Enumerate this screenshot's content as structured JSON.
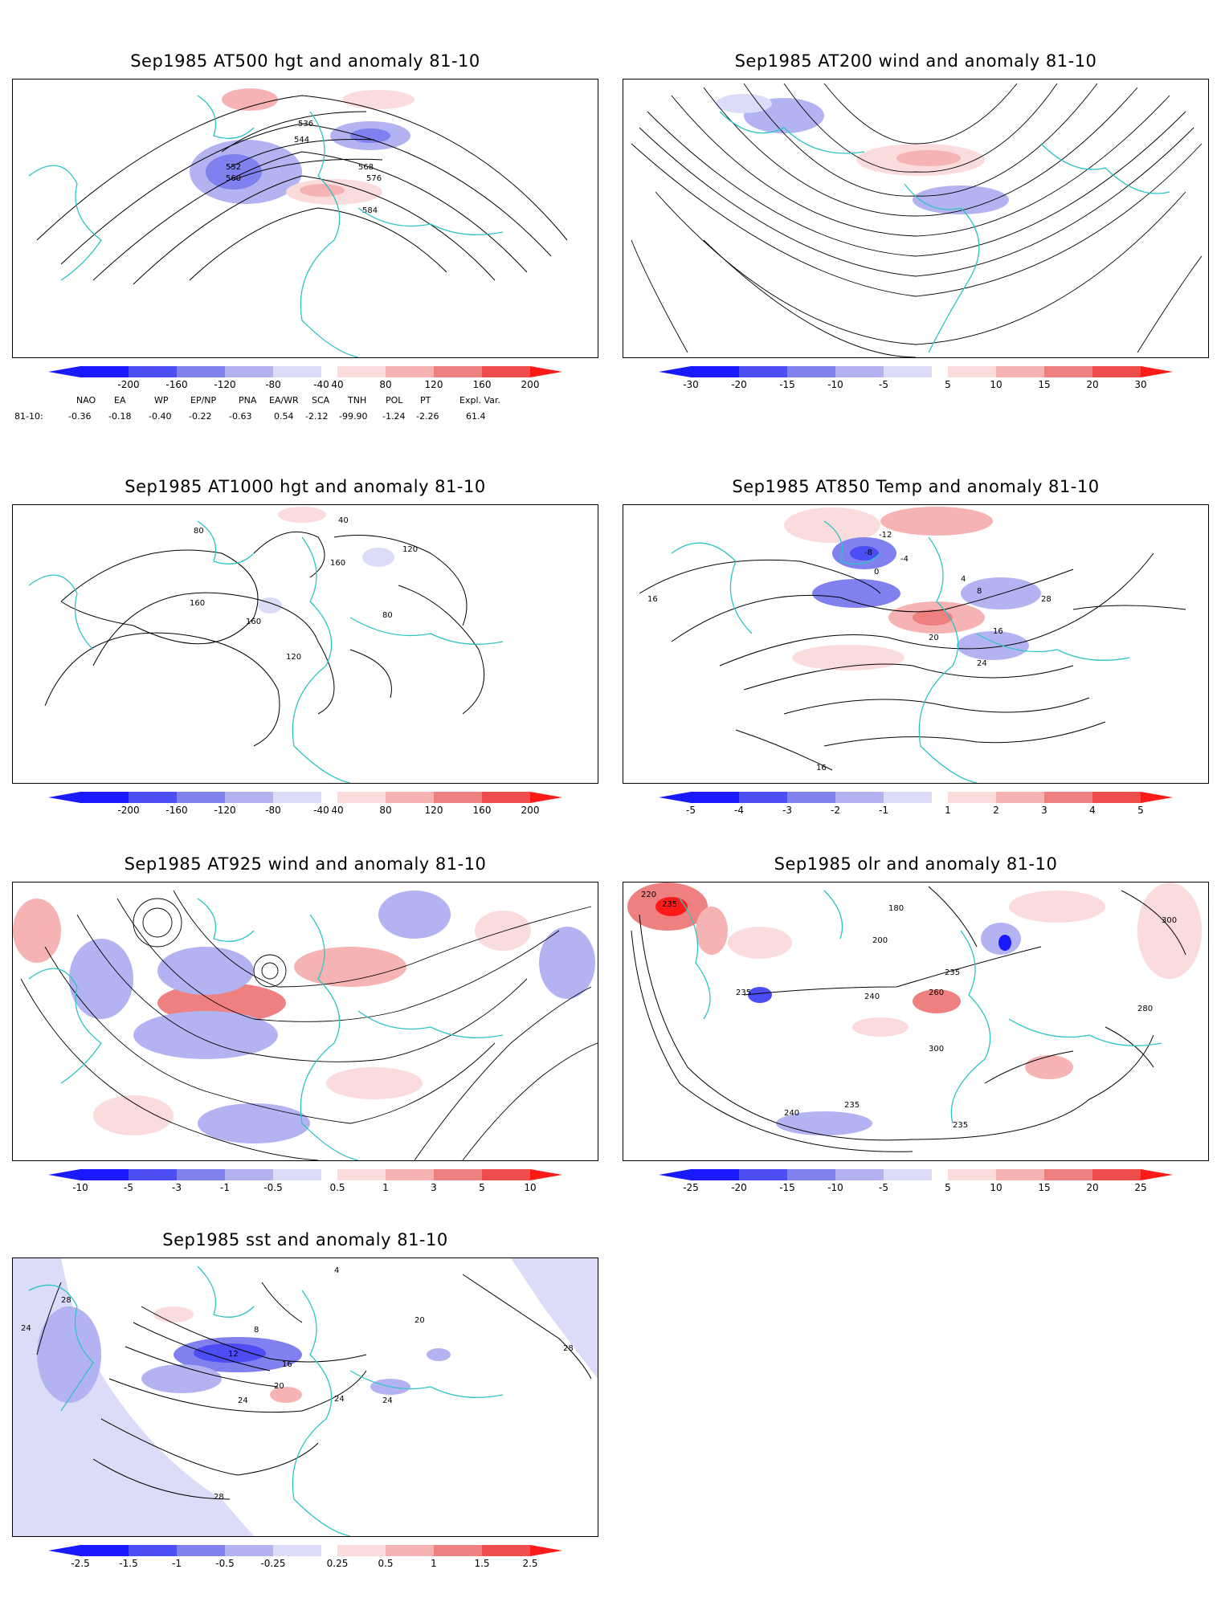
{
  "colors": {
    "coast": "#2ec4c4",
    "contour": "#000000",
    "blues": [
      "#1a1aff",
      "#4d4df5",
      "#8080ee",
      "#b3b3f2",
      "#dcdcf8"
    ],
    "reds": [
      "#fadcdc",
      "#f5b3b3",
      "#ef8080",
      "#f04d4d",
      "#ff1a1a"
    ]
  },
  "panels": [
    {
      "id": "p500",
      "title": "Sep1985 AT500 hgt and anomaly 81-10",
      "ticks": [
        "-200",
        "-160",
        "-120",
        "-80",
        "-40",
        "40",
        "80",
        "120",
        "160",
        "200"
      ],
      "contour_labels": [
        "536",
        "544",
        "552",
        "560",
        "568",
        "576",
        "584"
      ],
      "indices": {
        "row_label": "81-10:",
        "headers": [
          "NAO",
          "EA",
          "WP",
          "EP/NP",
          "PNA",
          "EA/WR",
          "SCA",
          "TNH",
          "POL",
          "PT",
          "Expl. Var."
        ],
        "values": [
          "-0.36",
          "-0.18",
          "-0.40",
          "-0.22",
          "-0.63",
          "0.54",
          "-2.12",
          "-99.90",
          "-1.24",
          "-2.26",
          "61.4"
        ]
      }
    },
    {
      "id": "p200",
      "title": "Sep1985 AT200 wind and anomaly 81-10",
      "ticks": [
        "-30",
        "-20",
        "-15",
        "-10",
        "-5",
        "5",
        "10",
        "15",
        "20",
        "30"
      ],
      "contour_labels": []
    },
    {
      "id": "p1000",
      "title": "Sep1985 AT1000 hgt and anomaly 81-10",
      "ticks": [
        "-200",
        "-160",
        "-120",
        "-80",
        "-40",
        "40",
        "80",
        "120",
        "160",
        "200"
      ],
      "contour_labels": [
        "40",
        "80",
        "120",
        "160"
      ]
    },
    {
      "id": "p850",
      "title": "Sep1985 AT850 Temp and anomaly 81-10",
      "ticks": [
        "-5",
        "-4",
        "-3",
        "-2",
        "-1",
        "1",
        "2",
        "3",
        "4",
        "5"
      ],
      "contour_labels": [
        "-12",
        "-8",
        "-4",
        "0",
        "4",
        "8",
        "16",
        "20",
        "24",
        "28"
      ]
    },
    {
      "id": "p925",
      "title": "Sep1985 AT925 wind and anomaly 81-10",
      "ticks": [
        "-10",
        "-5",
        "-3",
        "-1",
        "-0.5",
        "0.5",
        "1",
        "3",
        "5",
        "10"
      ],
      "contour_labels": []
    },
    {
      "id": "polr",
      "title": "Sep1985 olr and anomaly 81-10",
      "ticks": [
        "-25",
        "-20",
        "-15",
        "-10",
        "-5",
        "5",
        "10",
        "15",
        "20",
        "25"
      ],
      "contour_labels": [
        "180",
        "200",
        "220",
        "235",
        "240",
        "260",
        "280",
        "300"
      ]
    },
    {
      "id": "psst",
      "title": "Sep1985 sst and anomaly 81-10",
      "ticks": [
        "-2.5",
        "-1.5",
        "-1",
        "-0.5",
        "-0.25",
        "0.25",
        "0.5",
        "1",
        "1.5",
        "2.5"
      ],
      "contour_labels": [
        "4",
        "8",
        "12",
        "16",
        "20",
        "24",
        "28"
      ]
    }
  ]
}
